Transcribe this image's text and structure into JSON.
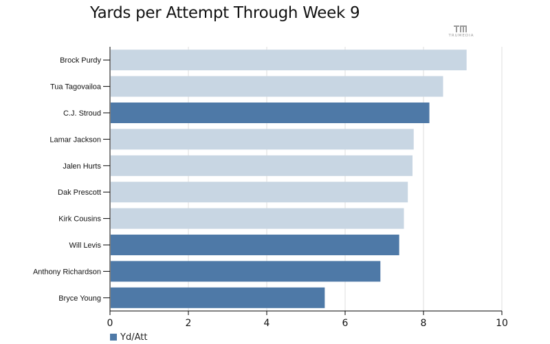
{
  "title": "Yards per Attempt Through Week 9",
  "logo": {
    "text": "TRUMEDIA"
  },
  "legend": {
    "label": "Yd/Att"
  },
  "colors": {
    "highlight": "#4e79a7",
    "muted": "#c8d6e3",
    "grid": "#dddddd",
    "axis": "#000000"
  },
  "chart_data": {
    "type": "bar",
    "orientation": "horizontal",
    "title": "Yards per Attempt Through Week 9",
    "xlabel": "",
    "ylabel": "",
    "xlim": [
      0,
      10
    ],
    "ticks": [
      0,
      2,
      4,
      6,
      8,
      10
    ],
    "grid": true,
    "legend_position": "bottom-left",
    "categories": [
      "Brock Purdy",
      "Tua Tagovailoa",
      "C.J. Stroud",
      "Lamar Jackson",
      "Jalen Hurts",
      "Dak Prescott",
      "Kirk Cousins",
      "Will Levis",
      "Anthony Richardson",
      "Bryce Young"
    ],
    "series": [
      {
        "name": "Yd/Att",
        "values": [
          9.1,
          8.5,
          8.15,
          7.75,
          7.72,
          7.6,
          7.5,
          7.38,
          6.9,
          5.48
        ],
        "highlighted": [
          false,
          false,
          true,
          false,
          false,
          false,
          false,
          true,
          true,
          true
        ]
      }
    ]
  }
}
